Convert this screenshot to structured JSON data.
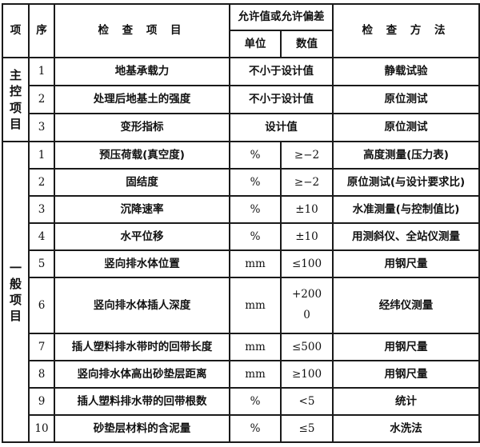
{
  "header": {
    "category": "项",
    "seq": "序",
    "item": "检 查 项 目",
    "tolerance": "允许值或允许偏差",
    "unit": "单位",
    "value": "数值",
    "method": "检 查 方 法"
  },
  "main_control": {
    "label": "主控项目",
    "rows": [
      {
        "seq": "1",
        "item": "地基承载力",
        "tolerance": "不小于设计值",
        "method": "静载试验"
      },
      {
        "seq": "2",
        "item": "处理后地基土的强度",
        "tolerance": "不小于设计值",
        "method": "原位测试"
      },
      {
        "seq": "3",
        "item": "变形指标",
        "tolerance": "设计值",
        "method": "原位测试"
      }
    ]
  },
  "general": {
    "label": "一般项目",
    "rows": [
      {
        "seq": "1",
        "item": "预压荷载(真空度)",
        "unit": "%",
        "value": "≥−2",
        "method": "高度测量(压力表)"
      },
      {
        "seq": "2",
        "item": "固结度",
        "unit": "%",
        "value": "≥−2",
        "method": "原位测试(与设计要求比)"
      },
      {
        "seq": "3",
        "item": "沉降速率",
        "unit": "%",
        "value": "±10",
        "method": "水准测量(与控制值比)"
      },
      {
        "seq": "4",
        "item": "水平位移",
        "unit": "%",
        "value": "±10",
        "method": "用测斜仪、全站仪测量"
      },
      {
        "seq": "5",
        "item": "竖向排水体位置",
        "unit": "mm",
        "value": "≤100",
        "method": "用钢尺量"
      },
      {
        "seq": "6",
        "item": "竖向排水体插人深度",
        "unit": "mm",
        "value_upper": "+200",
        "value_lower": "0",
        "method": "经纬仪测量"
      },
      {
        "seq": "7",
        "item": "插人塑料排水带时的回带长度",
        "unit": "mm",
        "value": "≤500",
        "method": "用钢尺量"
      },
      {
        "seq": "8",
        "item": "竖向排水体高出砂垫层距离",
        "unit": "mm",
        "value": "≥100",
        "method": "用钢尺量"
      },
      {
        "seq": "9",
        "item": "插人塑料排水带的回带根数",
        "unit": "%",
        "value": "<5",
        "method": "统计"
      },
      {
        "seq": "10",
        "item": "砂垫层材料的含泥量",
        "unit": "%",
        "value": "≤5",
        "method": "水洗法"
      }
    ]
  }
}
